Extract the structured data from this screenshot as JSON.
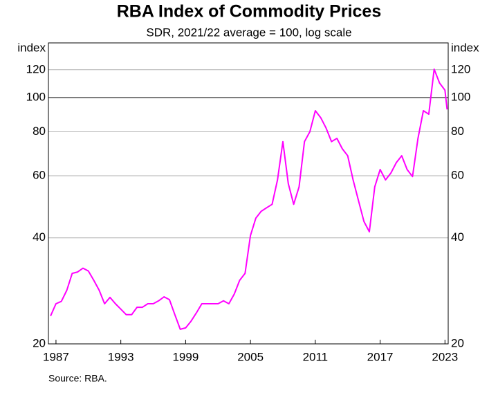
{
  "chart_data": {
    "type": "line",
    "title": "RBA Index of Commodity Prices",
    "subtitle": "SDR, 2021/22 average = 100, log scale",
    "y_label": "index",
    "y2_label": "index",
    "source": "Source:   RBA.",
    "log_scale": true,
    "grid": true,
    "hline": 100,
    "ylim": [
      20,
      143
    ],
    "yticks": [
      20,
      40,
      60,
      80,
      100,
      120
    ],
    "xlim": [
      1986.3,
      2023.3
    ],
    "xticks": [
      1987,
      1993,
      1999,
      2005,
      2011,
      2017,
      2023
    ],
    "x": [
      1986.5,
      1987,
      1987.5,
      1988,
      1988.5,
      1989,
      1989.5,
      1990,
      1990.5,
      1991,
      1991.5,
      1992,
      1992.5,
      1993,
      1993.5,
      1994,
      1994.5,
      1995,
      1995.5,
      1996,
      1996.5,
      1997,
      1997.5,
      1998,
      1998.5,
      1999,
      1999.5,
      2000,
      2000.5,
      2001,
      2001.5,
      2002,
      2002.5,
      2003,
      2003.5,
      2004,
      2004.5,
      2005,
      2005.5,
      2006,
      2006.5,
      2007,
      2007.5,
      2008,
      2008.5,
      2009,
      2009.5,
      2010,
      2010.5,
      2011,
      2011.5,
      2012,
      2012.5,
      2013,
      2013.5,
      2014,
      2014.5,
      2015,
      2015.5,
      2016,
      2016.5,
      2017,
      2017.5,
      2018,
      2018.5,
      2019,
      2019.5,
      2020,
      2020.5,
      2021,
      2021.5,
      2022,
      2022.5,
      2023,
      2023.2
    ],
    "series": [
      {
        "name": "RBA Index of Commodity Prices",
        "color": "#ff00ff",
        "values": [
          24,
          26,
          26.4,
          28.4,
          31.7,
          32,
          32.8,
          32.2,
          30.3,
          28.4,
          26,
          27.1,
          26,
          25.1,
          24.2,
          24.2,
          25.4,
          25.4,
          26,
          26,
          26.5,
          27.2,
          26.7,
          24.2,
          22,
          22.2,
          23.2,
          24.5,
          26,
          26,
          26,
          26,
          26.5,
          26,
          27.7,
          30.3,
          31.7,
          40.6,
          45.5,
          47.6,
          48.7,
          49.8,
          58.4,
          75,
          57,
          49.8,
          55.8,
          75,
          80,
          91.8,
          87.7,
          81.9,
          75,
          76.6,
          71.6,
          68.4,
          58.4,
          51,
          44.5,
          41.6,
          55.8,
          62.5,
          58.4,
          61.1,
          65.4,
          68.4,
          62.5,
          59.7,
          76.6,
          91.8,
          89.7,
          120.4,
          110,
          105,
          92.6
        ]
      }
    ]
  }
}
